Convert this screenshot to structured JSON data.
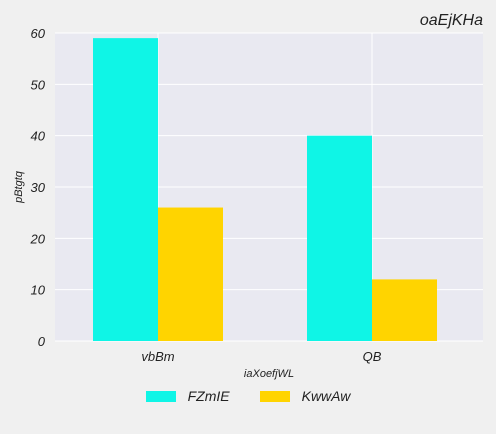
{
  "chart_data": {
    "type": "bar",
    "title": "oaEjKHa",
    "xlabel": "iaXoefjWL",
    "ylabel": "pBtgtq",
    "categories": [
      "vbBm",
      "QB"
    ],
    "series": [
      {
        "name": "FZmIE",
        "values": [
          59,
          40
        ],
        "color": "#0ff5e6"
      },
      {
        "name": "KwwAw",
        "values": [
          26,
          12
        ],
        "color": "#ffd400"
      }
    ],
    "ylim": [
      0,
      60
    ],
    "yticks": [
      0,
      10,
      20,
      30,
      40,
      50,
      60
    ],
    "grid": true,
    "legend_position": "bottom-center",
    "background": "#e9e9f1"
  }
}
